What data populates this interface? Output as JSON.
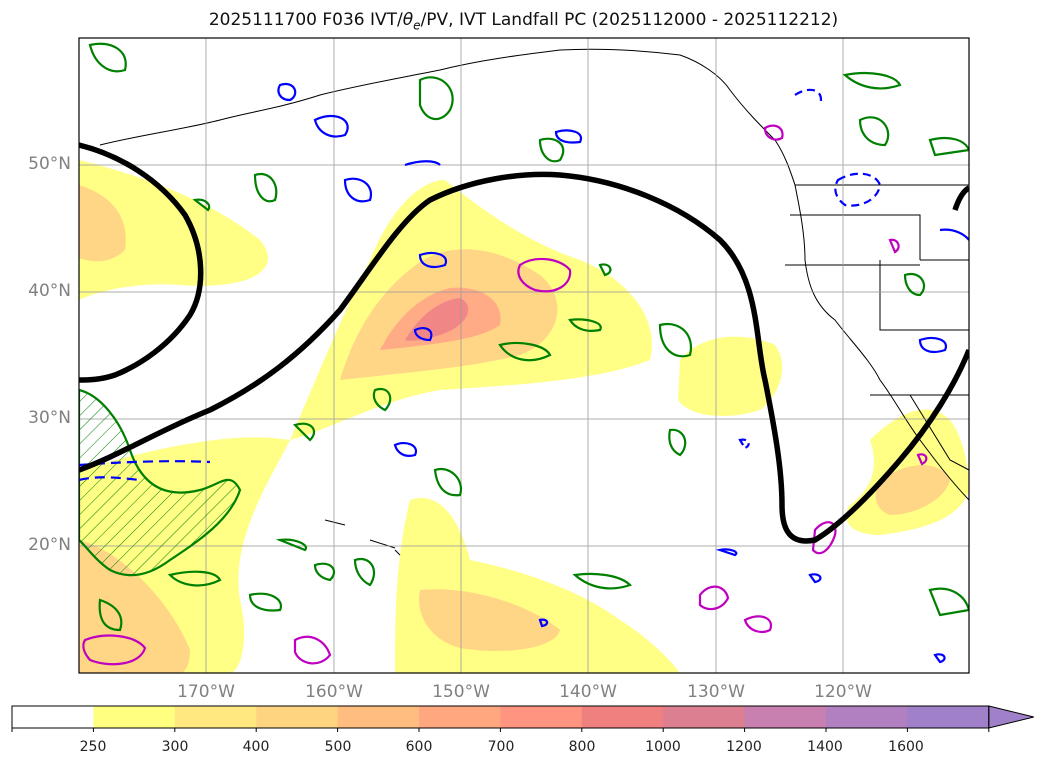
{
  "title_prefix": "2025111700 F036 IVT/",
  "title_theta": "θ",
  "title_sub": "e",
  "title_suffix": "/PV, IVT Landfall PC (2025112000 - 2025112212)",
  "map": {
    "lat_labels": [
      "50°N",
      "40°N",
      "30°N",
      "20°N"
    ],
    "lon_labels": [
      "170°W",
      "160°W",
      "150°W",
      "140°W",
      "130°W",
      "120°W"
    ]
  },
  "colorbar": {
    "levels": [
      "250",
      "300",
      "400",
      "500",
      "600",
      "700",
      "800",
      "1000",
      "1200",
      "1400",
      "1600"
    ],
    "colors": [
      "#ffffff",
      "#ffff80",
      "#ffe880",
      "#ffd480",
      "#ffbd80",
      "#ffa880",
      "#ff9480",
      "#f08080",
      "#dc7f90",
      "#c880b0",
      "#b080c0",
      "#a080c8"
    ],
    "extend": "max"
  },
  "legend_colors": {
    "landfall_pc": "#000000",
    "theta_e": "#008000",
    "pv_negative": "#0000ff",
    "pv_positive": "#c000c0"
  }
}
